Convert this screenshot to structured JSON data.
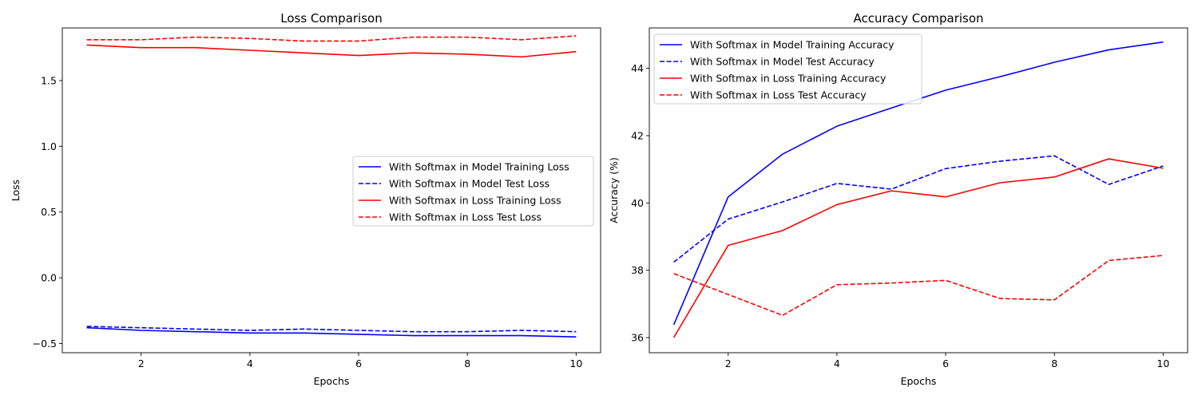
{
  "chart_data": [
    {
      "type": "line",
      "title": "Loss Comparison",
      "xlabel": "Epochs",
      "ylabel": "Loss",
      "xlim": [
        0.55,
        10.45
      ],
      "ylim": [
        -0.57,
        1.9
      ],
      "xticks": [
        2,
        4,
        6,
        8,
        10
      ],
      "yticks": [
        -0.5,
        0.0,
        0.5,
        1.0,
        1.5
      ],
      "yticklabels": [
        "−0.5",
        "0.0",
        "0.5",
        "1.0",
        "1.5"
      ],
      "grid": false,
      "legend_position": "center-right",
      "x": [
        1,
        2,
        3,
        4,
        5,
        6,
        7,
        8,
        9,
        10
      ],
      "series": [
        {
          "name": "With Softmax in Model Training Loss",
          "color": "#0000ff",
          "style": "solid",
          "values": [
            -0.38,
            -0.4,
            -0.41,
            -0.42,
            -0.42,
            -0.43,
            -0.44,
            -0.44,
            -0.44,
            -0.45
          ]
        },
        {
          "name": "With Softmax in Model Test Loss",
          "color": "#0000ff",
          "style": "dashed",
          "values": [
            -0.37,
            -0.38,
            -0.39,
            -0.4,
            -0.39,
            -0.4,
            -0.41,
            -0.41,
            -0.4,
            -0.41
          ]
        },
        {
          "name": "With Softmax in Loss Training Loss",
          "color": "#ff0000",
          "style": "solid",
          "values": [
            1.77,
            1.75,
            1.75,
            1.73,
            1.71,
            1.69,
            1.71,
            1.7,
            1.68,
            1.72
          ]
        },
        {
          "name": "With Softmax in Loss Test Loss",
          "color": "#ff0000",
          "style": "dashed",
          "values": [
            1.81,
            1.81,
            1.83,
            1.82,
            1.8,
            1.8,
            1.83,
            1.83,
            1.81,
            1.84
          ]
        }
      ]
    },
    {
      "type": "line",
      "title": "Accuracy Comparison",
      "xlabel": "Epochs",
      "ylabel": "Accuracy (%)",
      "xlim": [
        0.55,
        10.45
      ],
      "ylim": [
        35.55,
        45.2
      ],
      "xticks": [
        2,
        4,
        6,
        8,
        10
      ],
      "yticks": [
        36,
        38,
        40,
        42,
        44
      ],
      "yticklabels": [
        "36",
        "38",
        "40",
        "42",
        "44"
      ],
      "grid": false,
      "legend_position": "top-left",
      "x": [
        1,
        2,
        3,
        4,
        5,
        6,
        7,
        8,
        9,
        10
      ],
      "series": [
        {
          "name": "With Softmax in Model Training Accuracy",
          "color": "#0000ff",
          "style": "solid",
          "values": [
            36.38,
            40.18,
            41.45,
            42.28,
            42.82,
            43.35,
            43.75,
            44.18,
            44.55,
            44.78
          ]
        },
        {
          "name": "With Softmax in Model Test Accuracy",
          "color": "#0000ff",
          "style": "dashed",
          "values": [
            38.24,
            39.52,
            40.03,
            40.58,
            40.41,
            41.02,
            41.24,
            41.4,
            40.55,
            41.1
          ]
        },
        {
          "name": "With Softmax in Loss Training Accuracy",
          "color": "#ff0000",
          "style": "solid",
          "values": [
            36.0,
            38.74,
            39.18,
            39.95,
            40.36,
            40.18,
            40.6,
            40.77,
            41.31,
            41.03
          ]
        },
        {
          "name": "With Softmax in Loss Test Accuracy",
          "color": "#ff0000",
          "style": "dashed",
          "values": [
            37.9,
            37.28,
            36.66,
            37.57,
            37.62,
            37.7,
            37.16,
            37.12,
            38.29,
            38.44
          ]
        }
      ]
    }
  ]
}
